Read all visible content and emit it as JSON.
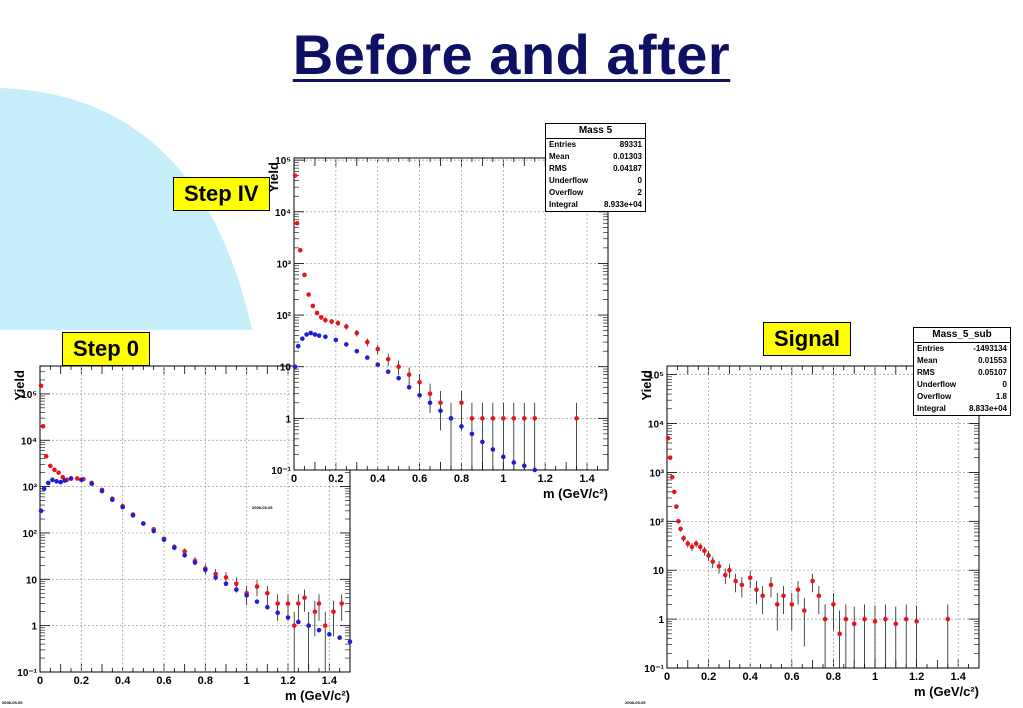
{
  "slide": {
    "title": "Before and after",
    "colors": {
      "title": "#0e1063",
      "decoration": "#c6eefb",
      "label_bg": "#ffff00"
    }
  },
  "chart_data": [
    {
      "id": "step0",
      "type": "scatter",
      "label": "Step 0",
      "title": "",
      "xlabel": "m (GeV/c²)",
      "ylabel": "Yield",
      "xlim": [
        0,
        1.5
      ],
      "ylim": [
        0.1,
        400000
      ],
      "yscale": "log",
      "grid": true,
      "x_ticks": [
        "0",
        "0.2",
        "0.4",
        "0.6",
        "0.8",
        "1",
        "1.2",
        "1.4"
      ],
      "y_ticks": [
        "10⁻¹",
        "1",
        "10",
        "10²",
        "10³",
        "10⁴",
        "10⁵"
      ],
      "datestamp": "2008-05-05",
      "series": [
        {
          "color": "#e8141a",
          "errorbars": true,
          "x": [
            0.005,
            0.015,
            0.03,
            0.05,
            0.07,
            0.09,
            0.11,
            0.13,
            0.15,
            0.18,
            0.21,
            0.25,
            0.3,
            0.35,
            0.4,
            0.45,
            0.5,
            0.55,
            0.6,
            0.65,
            0.7,
            0.75,
            0.8,
            0.85,
            0.9,
            0.95,
            1.0,
            1.05,
            1.1,
            1.15,
            1.2,
            1.23,
            1.25,
            1.28,
            1.3,
            1.33,
            1.35,
            1.38,
            1.42,
            1.46
          ],
          "y": [
            150000,
            20000,
            4500,
            2800,
            2300,
            2000,
            1600,
            1400,
            1500,
            1500,
            1450,
            1200,
            850,
            550,
            380,
            250,
            160,
            120,
            75,
            50,
            40,
            25,
            17,
            13,
            11,
            8,
            5,
            7,
            5,
            3,
            3,
            1,
            3,
            4,
            1,
            2,
            3,
            1,
            2,
            3
          ]
        },
        {
          "color": "#1c1ed8",
          "errorbars": false,
          "x": [
            0.005,
            0.02,
            0.04,
            0.06,
            0.08,
            0.1,
            0.12,
            0.15,
            0.2,
            0.25,
            0.3,
            0.35,
            0.4,
            0.45,
            0.5,
            0.55,
            0.6,
            0.65,
            0.7,
            0.75,
            0.8,
            0.85,
            0.9,
            0.95,
            1.0,
            1.05,
            1.1,
            1.15,
            1.2,
            1.25,
            1.3,
            1.35,
            1.4,
            1.45,
            1.5
          ],
          "y": [
            300,
            900,
            1200,
            1400,
            1300,
            1250,
            1350,
            1500,
            1400,
            1150,
            800,
            520,
            360,
            240,
            160,
            110,
            72,
            48,
            33,
            23,
            16,
            11,
            8,
            6,
            4.5,
            3.3,
            2.5,
            1.9,
            1.5,
            1.2,
            1.0,
            0.8,
            0.65,
            0.55,
            0.45
          ]
        }
      ]
    },
    {
      "id": "step4",
      "type": "scatter",
      "label": "Step IV",
      "title": "",
      "xlabel": "m (GeV/c²)",
      "ylabel": "Yield",
      "xlim": [
        0,
        1.5
      ],
      "ylim": [
        0.1,
        110000
      ],
      "yscale": "log",
      "grid": true,
      "x_ticks": [
        "0",
        "0.2",
        "0.4",
        "0.6",
        "0.8",
        "1",
        "1.2",
        "1.4"
      ],
      "y_ticks": [
        "10⁻¹",
        "1",
        "10",
        "10²",
        "10³",
        "10⁴",
        "10⁵"
      ],
      "stats": {
        "title": "Mass 5",
        "rows": [
          {
            "label": "Entries",
            "value": "89331"
          },
          {
            "label": "Mean",
            "value": "0.01303"
          },
          {
            "label": "RMS",
            "value": "0.04187"
          },
          {
            "label": "Underflow",
            "value": "0"
          },
          {
            "label": "Overflow",
            "value": "2"
          },
          {
            "label": "Integral",
            "value": "8.933e+04"
          }
        ]
      },
      "datestamp": "2008-05-05",
      "series": [
        {
          "color": "#e8141a",
          "errorbars": true,
          "x": [
            0.005,
            0.015,
            0.03,
            0.05,
            0.07,
            0.09,
            0.11,
            0.13,
            0.15,
            0.18,
            0.21,
            0.25,
            0.3,
            0.35,
            0.4,
            0.45,
            0.5,
            0.55,
            0.6,
            0.65,
            0.7,
            0.75,
            0.8,
            0.85,
            0.9,
            0.95,
            1.0,
            1.05,
            1.1,
            1.15,
            1.35
          ],
          "y": [
            50000,
            6000,
            1800,
            600,
            250,
            150,
            110,
            90,
            80,
            75,
            70,
            60,
            45,
            30,
            22,
            14,
            10,
            7,
            5,
            3,
            2,
            1,
            2,
            1,
            1,
            1,
            1,
            1,
            1,
            1,
            1
          ]
        },
        {
          "color": "#1c1ed8",
          "errorbars": false,
          "x": [
            0.005,
            0.02,
            0.04,
            0.06,
            0.08,
            0.1,
            0.12,
            0.15,
            0.2,
            0.25,
            0.3,
            0.35,
            0.4,
            0.45,
            0.5,
            0.55,
            0.6,
            0.65,
            0.7,
            0.75,
            0.8,
            0.85,
            0.9,
            0.95,
            1.0,
            1.05,
            1.1,
            1.15
          ],
          "y": [
            10,
            25,
            35,
            42,
            45,
            42,
            40,
            38,
            33,
            27,
            20,
            15,
            11,
            8,
            6,
            4,
            2.8,
            2,
            1.4,
            1,
            0.7,
            0.5,
            0.35,
            0.25,
            0.18,
            0.14,
            0.12,
            0.1
          ]
        }
      ]
    },
    {
      "id": "signal",
      "type": "scatter",
      "label": "Signal",
      "title": "",
      "xlabel": "m (GeV/c²)",
      "ylabel": "Yield",
      "xlim": [
        0,
        1.5
      ],
      "ylim": [
        0.1,
        150000
      ],
      "yscale": "log",
      "grid": true,
      "x_ticks": [
        "0",
        "0.2",
        "0.4",
        "0.6",
        "0.8",
        "1",
        "1.2",
        "1.4"
      ],
      "y_ticks": [
        "10⁻¹",
        "1",
        "10",
        "10²",
        "10³",
        "10⁴",
        "10⁵"
      ],
      "stats": {
        "title": "Mass_5_sub",
        "rows": [
          {
            "label": "Entries",
            "value": "-1493134"
          },
          {
            "label": "Mean",
            "value": "0.01553"
          },
          {
            "label": "RMS",
            "value": "0.05107"
          },
          {
            "label": "Underflow",
            "value": "0"
          },
          {
            "label": "Overflow",
            "value": "1.8"
          },
          {
            "label": "Integral",
            "value": "8.833e+04"
          }
        ]
      },
      "datestamp": "2008-05-05",
      "series": [
        {
          "color": "#e8141a",
          "errorbars": true,
          "x": [
            0.005,
            0.015,
            0.025,
            0.035,
            0.045,
            0.055,
            0.065,
            0.08,
            0.1,
            0.12,
            0.14,
            0.16,
            0.18,
            0.2,
            0.22,
            0.25,
            0.28,
            0.3,
            0.33,
            0.36,
            0.4,
            0.43,
            0.46,
            0.5,
            0.53,
            0.56,
            0.6,
            0.63,
            0.66,
            0.7,
            0.73,
            0.76,
            0.8,
            0.83,
            0.86,
            0.9,
            0.95,
            1.0,
            1.05,
            1.1,
            1.15,
            1.2,
            1.35
          ],
          "y": [
            5000,
            2000,
            800,
            400,
            200,
            100,
            70,
            45,
            35,
            30,
            35,
            30,
            25,
            20,
            15,
            12,
            8,
            10,
            6,
            5,
            7,
            4,
            3,
            5,
            2,
            3,
            2,
            4,
            1.5,
            6,
            3,
            1,
            2,
            0.5,
            1,
            0.8,
            1,
            0.9,
            1,
            0.8,
            1,
            0.9,
            1
          ]
        }
      ]
    }
  ]
}
